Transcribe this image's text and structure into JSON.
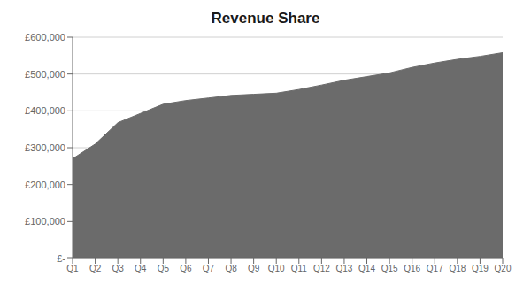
{
  "chart_data": {
    "type": "area",
    "title": "Revenue Share",
    "categories": [
      "Q1",
      "Q2",
      "Q3",
      "Q4",
      "Q5",
      "Q6",
      "Q7",
      "Q8",
      "Q9",
      "Q10",
      "Q11",
      "Q12",
      "Q13",
      "Q14",
      "Q15",
      "Q16",
      "Q17",
      "Q18",
      "Q19",
      "Q20"
    ],
    "values": [
      270000,
      310000,
      368000,
      393000,
      418000,
      428000,
      435000,
      442000,
      445000,
      448000,
      458000,
      470000,
      483000,
      493000,
      503000,
      518000,
      530000,
      540000,
      548000,
      558000
    ],
    "color": "#6b6b6b",
    "ylim": [
      0,
      600000
    ],
    "yticks": [
      {
        "value": 0,
        "label": "£-"
      },
      {
        "value": 100000,
        "label": "£100,000"
      },
      {
        "value": 200000,
        "label": "£200,000"
      },
      {
        "value": 300000,
        "label": "£300,000"
      },
      {
        "value": 400000,
        "label": "£400,000"
      },
      {
        "value": 500000,
        "label": "£500,000"
      },
      {
        "value": 600000,
        "label": "£600,000"
      }
    ],
    "grid": true
  }
}
